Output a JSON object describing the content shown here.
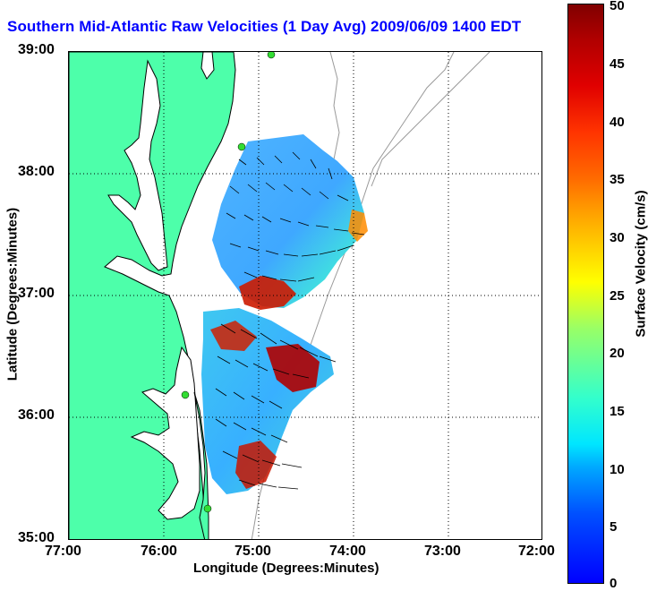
{
  "title": "Southern Mid-Atlantic Raw Velocities (1 Day Avg) 2009/06/09 1400 EDT",
  "xaxis": {
    "label": "Longitude (Degrees:Minutes)",
    "ticks": [
      "77:00",
      "76:00",
      "75:00",
      "74:00",
      "73:00",
      "72:00"
    ]
  },
  "yaxis": {
    "label": "Latitude (Degrees:Minutes)",
    "ticks": [
      "39:00",
      "38:00",
      "37:00",
      "36:00",
      "35:00"
    ]
  },
  "colorbar": {
    "label": "Surface Velocity (cm/s)",
    "ticks": [
      "50",
      "45",
      "40",
      "35",
      "30",
      "25",
      "20",
      "15",
      "10",
      "5",
      "0"
    ],
    "range": [
      0,
      50
    ]
  },
  "colors": {
    "land": "#4dffaa",
    "coastline": "#000000",
    "isobath": "#999999",
    "station": "#33dd33",
    "title": "#0000ff"
  }
}
